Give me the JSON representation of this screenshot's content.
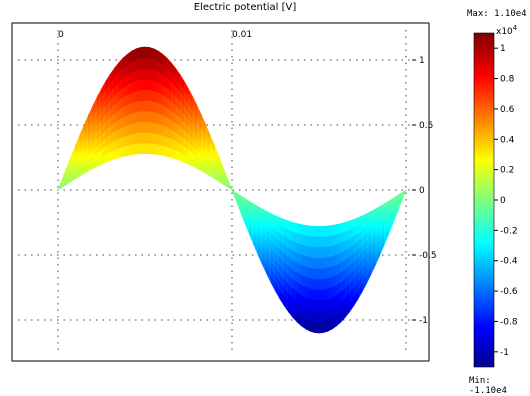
{
  "chart_data": {
    "type": "area",
    "title": "Electric potential [V]",
    "x_tick_labels": [
      "0",
      "0.01"
    ],
    "y_tick_labels": [
      "1",
      "0.5",
      "0",
      "-0.5",
      "-1"
    ],
    "y_ticks": [
      1,
      0.5,
      0,
      -0.5,
      -1
    ],
    "y_scale_note": "x10",
    "y_scale_exponent": "4",
    "xlim": [
      0,
      0.02
    ],
    "ylim": [
      -1.1,
      1.1
    ],
    "upper_curve": {
      "amplitude": 1.1,
      "shape": "sine"
    },
    "lower_curve": {
      "amplitude": 0.28,
      "shape": "sine"
    },
    "grid": true,
    "colorbar": {
      "max_label": "Max: 1.10e4",
      "min_label": "Min: -1.10e4",
      "ticks": [
        "1",
        "0.8",
        "0.6",
        "0.4",
        "0.2",
        "0",
        "-0.2",
        "-0.4",
        "-0.6",
        "-0.8",
        "-1"
      ],
      "tick_values": [
        1,
        0.8,
        0.6,
        0.4,
        0.2,
        0,
        -0.2,
        -0.4,
        -0.6,
        -0.8,
        -1
      ],
      "colormap": "rainbow",
      "range": [
        -1.1,
        1.1
      ]
    }
  }
}
